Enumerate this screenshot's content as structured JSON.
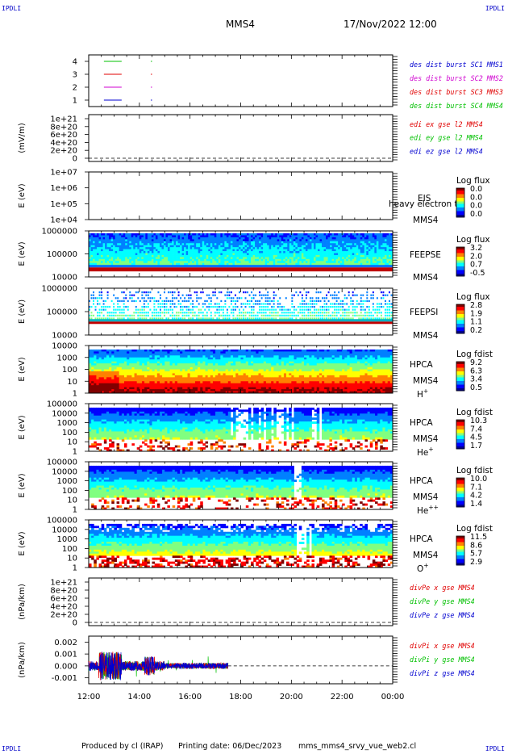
{
  "corner_label": "IPDLI",
  "header": {
    "spacecraft": "MMS4",
    "datetime": "17/Nov/2022 12:00"
  },
  "footer": {
    "produced_by": "Produced by cl (IRAP)",
    "printing_date": "Printing date: 06/Dec/2023",
    "script": "mms_mms4_srvy_vue_web2.cl"
  },
  "colors": {
    "black": "#000000",
    "red": "#e00000",
    "magenta": "#d000d0",
    "blue": "#0000d0",
    "green": "#00c000",
    "colorbar": [
      "#00008f",
      "#0000ff",
      "#0080ff",
      "#00ffff",
      "#80ff80",
      "#ffff00",
      "#ff8000",
      "#ff0000",
      "#800000"
    ]
  },
  "chart_data": {
    "time_axis": {
      "start": "12:00",
      "end": "00:00",
      "ticks": [
        "12:00",
        "14:00",
        "16:00",
        "18:00",
        "20:00",
        "22:00",
        "00:00"
      ],
      "tick_hours": [
        12,
        14,
        16,
        18,
        20,
        22,
        24
      ]
    },
    "panels": [
      {
        "id": "burst",
        "type": "line",
        "ylabel": "",
        "yticks": [
          "4",
          "3",
          "2",
          "1"
        ],
        "legend": [
          {
            "text": "des dist burst SC1 MMS1",
            "color": "#0000d0"
          },
          {
            "text": "des dist burst SC2 MMS2",
            "color": "#d000d0"
          },
          {
            "text": "des dist burst SC3 MMS3",
            "color": "#e00000"
          },
          {
            "text": "des dist burst SC4 MMS4",
            "color": "#00c000"
          }
        ],
        "segments": [
          {
            "y": 4,
            "color": "#00c000",
            "x": [
              12.6,
              13.3
            ]
          },
          {
            "y": 4,
            "color": "#00c000",
            "x": [
              14.45,
              14.5
            ]
          },
          {
            "y": 3,
            "color": "#e00000",
            "x": [
              12.6,
              13.3
            ]
          },
          {
            "y": 3,
            "color": "#e00000",
            "x": [
              14.45,
              14.5
            ]
          },
          {
            "y": 2,
            "color": "#d000d0",
            "x": [
              12.6,
              13.3
            ]
          },
          {
            "y": 2,
            "color": "#d000d0",
            "x": [
              14.45,
              14.5
            ]
          },
          {
            "y": 1,
            "color": "#0000d0",
            "x": [
              12.6,
              13.3
            ]
          },
          {
            "y": 1,
            "color": "#0000d0",
            "x": [
              14.45,
              14.5
            ]
          }
        ]
      },
      {
        "id": "edi",
        "type": "line",
        "ylabel": "(mV/m)",
        "yticks": [
          "1e+21",
          "8e+20",
          "6e+20",
          "4e+20",
          "2e+20",
          "0"
        ],
        "legend": [
          {
            "text": "edi ex gse l2 MMS4",
            "color": "#e00000"
          },
          {
            "text": "edi ey gse l2 MMS4",
            "color": "#00c000"
          },
          {
            "text": "edi ez gse l2 MMS4",
            "color": "#0000d0"
          }
        ]
      },
      {
        "id": "eis",
        "type": "heatmap",
        "ylabel": "E (eV)",
        "yticks": [
          "1e+07",
          "1e+06",
          "1e+05",
          "1e+04"
        ],
        "instrument": "EIS",
        "spacecraft": "MMS4",
        "overlay_text": "heavy electron to",
        "colorbar": {
          "title": "Log flux",
          "values": [
            "0.0",
            "0.0",
            "0.0",
            "0.0"
          ]
        }
      },
      {
        "id": "feepse",
        "type": "heatmap",
        "ylabel": "E (eV)",
        "yticks": [
          "1000000",
          "100000",
          "10000"
        ],
        "instrument": "FEEPSE",
        "spacecraft": "MMS4",
        "colorbar": {
          "title": "Log flux",
          "values": [
            "3.2",
            "2.0",
            "0.7",
            "-0.5"
          ]
        }
      },
      {
        "id": "feepsi",
        "type": "heatmap",
        "ylabel": "E (eV)",
        "yticks": [
          "1000000",
          "100000",
          "10000"
        ],
        "instrument": "FEEPSI",
        "spacecraft": "MMS4",
        "colorbar": {
          "title": "Log flux",
          "values": [
            "2.8",
            "1.9",
            "1.1",
            "0.2"
          ]
        }
      },
      {
        "id": "hpca_h",
        "type": "heatmap",
        "ylabel": "E (eV)",
        "yticks": [
          "10000",
          "1000",
          "100",
          "10",
          "1"
        ],
        "instrument": "HPCA",
        "spacecraft": "MMS4",
        "species": "H",
        "charge": "+",
        "colorbar": {
          "title": "Log fdist",
          "values": [
            "9.2",
            "6.3",
            "3.4",
            "0.5"
          ]
        }
      },
      {
        "id": "hpca_he1",
        "type": "heatmap",
        "ylabel": "E (eV)",
        "yticks": [
          "100000",
          "10000",
          "1000",
          "100",
          "10",
          "1"
        ],
        "instrument": "HPCA",
        "spacecraft": "MMS4",
        "species": "He",
        "charge": "+",
        "colorbar": {
          "title": "Log fdist",
          "values": [
            "10.3",
            "7.4",
            "4.5",
            "1.7"
          ]
        }
      },
      {
        "id": "hpca_he2",
        "type": "heatmap",
        "ylabel": "E (eV)",
        "yticks": [
          "100000",
          "10000",
          "1000",
          "100",
          "10",
          "1"
        ],
        "instrument": "HPCA",
        "spacecraft": "MMS4",
        "species": "He",
        "charge": "++",
        "colorbar": {
          "title": "Log fdist",
          "values": [
            "10.0",
            "7.1",
            "4.2",
            "1.4"
          ]
        }
      },
      {
        "id": "hpca_o",
        "type": "heatmap",
        "ylabel": "E (eV)",
        "yticks": [
          "100000",
          "10000",
          "1000",
          "100",
          "10",
          "1"
        ],
        "instrument": "HPCA",
        "spacecraft": "MMS4",
        "species": "O",
        "charge": "+",
        "colorbar": {
          "title": "Log fdist",
          "values": [
            "11.5",
            "8.6",
            "5.7",
            "2.9"
          ]
        }
      },
      {
        "id": "divpe",
        "type": "line",
        "ylabel": "(nPa/km)",
        "yticks": [
          "1e+21",
          "8e+20",
          "6e+20",
          "4e+20",
          "2e+20",
          "0"
        ],
        "legend": [
          {
            "text": "divPe x gse MMS4",
            "color": "#e00000"
          },
          {
            "text": "divPe y gse MMS4",
            "color": "#00c000"
          },
          {
            "text": "divPe z gse MMS4",
            "color": "#0000d0"
          }
        ]
      },
      {
        "id": "divpi",
        "type": "line",
        "ylabel": "(nPa/km)",
        "yticks": [
          "0.002",
          "0.001",
          "0.000",
          "-0.001"
        ],
        "ylim": [
          -0.0015,
          0.0025
        ],
        "data_x_range": [
          12.0,
          17.5
        ],
        "legend": [
          {
            "text": "divPi x gse MMS4",
            "color": "#e00000"
          },
          {
            "text": "divPi y gse MMS4",
            "color": "#00c000"
          },
          {
            "text": "divPi z gse MMS4",
            "color": "#0000d0"
          }
        ]
      }
    ]
  }
}
